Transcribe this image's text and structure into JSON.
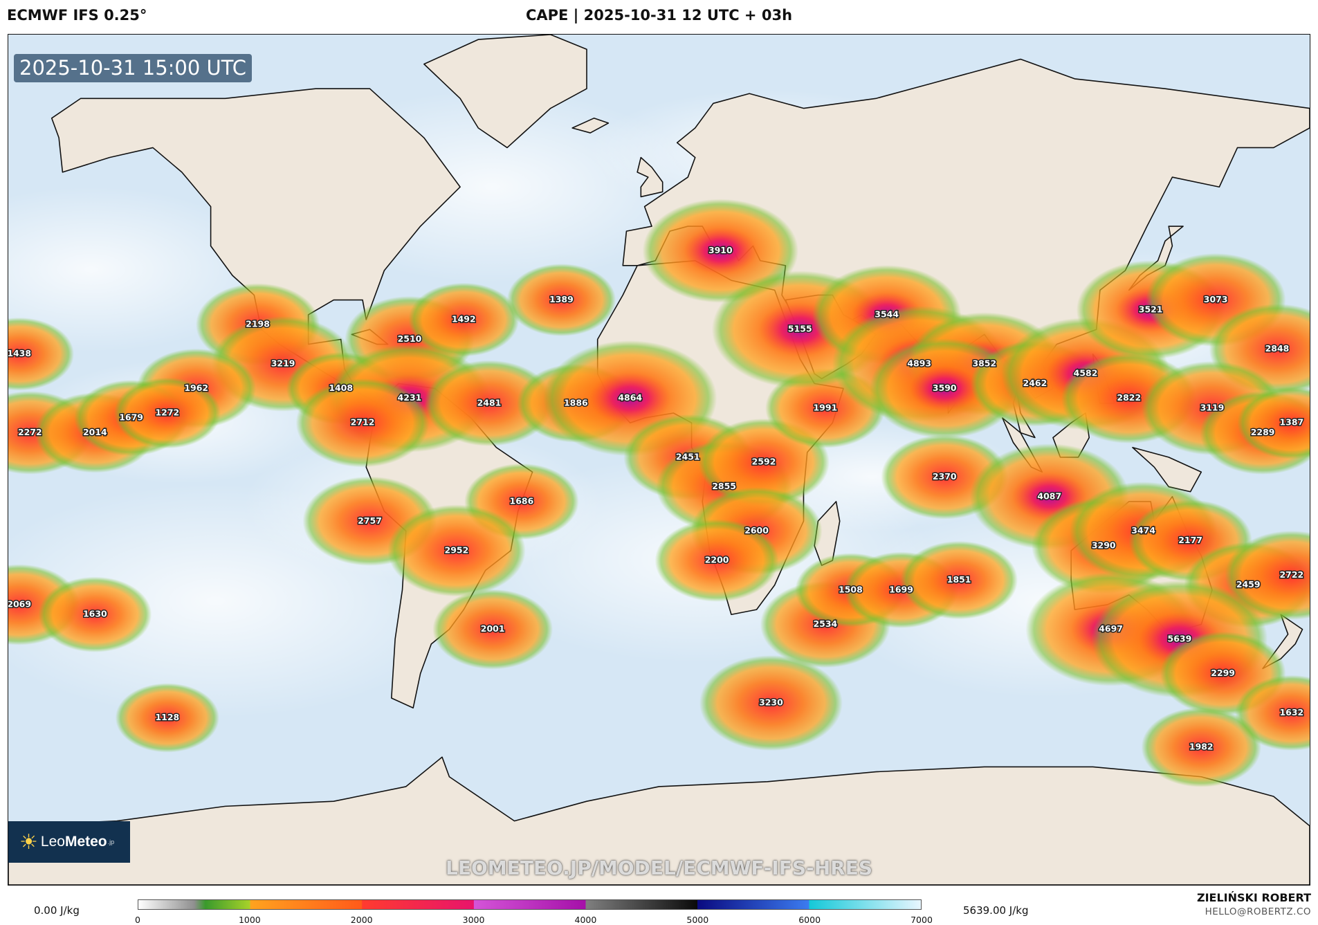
{
  "header": {
    "model": "ECMWF IFS 0.25°",
    "title": "CAPE | 2025-10-31 12 UTC + 03h"
  },
  "map": {
    "valid_time": "2025-10-31 15:00 UTC",
    "watermark": "LEOMETEO.JP/MODEL/ECMWF-IFS-HRES",
    "logo": {
      "brand_prefix": "Leo",
      "brand_main": "Meteo",
      "brand_suffix": ".jp",
      "icon": "sun-icon"
    },
    "colors": {
      "ocean": "#d6e7f5",
      "land": "#efe7dc",
      "border": "#111111"
    },
    "cape_values": [
      {
        "label": "2198",
        "lon": -111,
        "lat": 24
      },
      {
        "label": "3219",
        "lon": -104,
        "lat": 16
      },
      {
        "label": "1962",
        "lon": -128,
        "lat": 11
      },
      {
        "label": "1408",
        "lon": -88,
        "lat": 11
      },
      {
        "label": "2510",
        "lon": -69,
        "lat": 21
      },
      {
        "label": "1492",
        "lon": -54,
        "lat": 25
      },
      {
        "label": "1389",
        "lon": -27,
        "lat": 29
      },
      {
        "label": "4231",
        "lon": -69,
        "lat": 9
      },
      {
        "label": "2712",
        "lon": -82,
        "lat": 4
      },
      {
        "label": "2481",
        "lon": -47,
        "lat": 8
      },
      {
        "label": "1886",
        "lon": -23,
        "lat": 8
      },
      {
        "label": "4864",
        "lon": -8,
        "lat": 9
      },
      {
        "label": "2451",
        "lon": 8,
        "lat": -3
      },
      {
        "label": "2855",
        "lon": 18,
        "lat": -9
      },
      {
        "label": "2592",
        "lon": 29,
        "lat": -4
      },
      {
        "label": "1991",
        "lon": 46,
        "lat": 7
      },
      {
        "label": "1686",
        "lon": -38,
        "lat": -12
      },
      {
        "label": "2757",
        "lon": -80,
        "lat": -16
      },
      {
        "label": "2952",
        "lon": -56,
        "lat": -22
      },
      {
        "label": "2001",
        "lon": -46,
        "lat": -38
      },
      {
        "label": "2600",
        "lon": 27,
        "lat": -18
      },
      {
        "label": "2200",
        "lon": 16,
        "lat": -24
      },
      {
        "label": "2534",
        "lon": 46,
        "lat": -37
      },
      {
        "label": "3230",
        "lon": 31,
        "lat": -53
      },
      {
        "label": "3910",
        "lon": 17,
        "lat": 39
      },
      {
        "label": "5155",
        "lon": 39,
        "lat": 23
      },
      {
        "label": "3544",
        "lon": 63,
        "lat": 26
      },
      {
        "label": "4893",
        "lon": 72,
        "lat": 16
      },
      {
        "label": "3852",
        "lon": 90,
        "lat": 16
      },
      {
        "label": "3590",
        "lon": 79,
        "lat": 11
      },
      {
        "label": "2462",
        "lon": 104,
        "lat": 12
      },
      {
        "label": "4582",
        "lon": 118,
        "lat": 14
      },
      {
        "label": "3521",
        "lon": 136,
        "lat": 27
      },
      {
        "label": "3073",
        "lon": 154,
        "lat": 29
      },
      {
        "label": "2848",
        "lon": 171,
        "lat": 19
      },
      {
        "label": "2822",
        "lon": 130,
        "lat": 9
      },
      {
        "label": "3119",
        "lon": 153,
        "lat": 7
      },
      {
        "label": "2289",
        "lon": 167,
        "lat": 2
      },
      {
        "label": "1387",
        "lon": 175,
        "lat": 4
      },
      {
        "label": "2370",
        "lon": 79,
        "lat": -7
      },
      {
        "label": "4087",
        "lon": 108,
        "lat": -11
      },
      {
        "label": "3290",
        "lon": 123,
        "lat": -21
      },
      {
        "label": "3474",
        "lon": 134,
        "lat": -18
      },
      {
        "label": "2177",
        "lon": 147,
        "lat": -20
      },
      {
        "label": "1508",
        "lon": 53,
        "lat": -30
      },
      {
        "label": "1699",
        "lon": 67,
        "lat": -30
      },
      {
        "label": "1851",
        "lon": 83,
        "lat": -28
      },
      {
        "label": "2459",
        "lon": 163,
        "lat": -29
      },
      {
        "label": "2722",
        "lon": 175,
        "lat": -27
      },
      {
        "label": "4697",
        "lon": 125,
        "lat": -38
      },
      {
        "label": "5639",
        "lon": 144,
        "lat": -40
      },
      {
        "label": "2299",
        "lon": 156,
        "lat": -47
      },
      {
        "label": "1632",
        "lon": 175,
        "lat": -55
      },
      {
        "label": "1982",
        "lon": 150,
        "lat": -62
      },
      {
        "label": "1438",
        "lon": -177,
        "lat": 18
      },
      {
        "label": "2272",
        "lon": -174,
        "lat": 2
      },
      {
        "label": "2014",
        "lon": -156,
        "lat": 2
      },
      {
        "label": "1679",
        "lon": -146,
        "lat": 5
      },
      {
        "label": "1272",
        "lon": -136,
        "lat": 6
      },
      {
        "label": "2069",
        "lon": -177,
        "lat": -33
      },
      {
        "label": "1630",
        "lon": -156,
        "lat": -35
      },
      {
        "label": "1128",
        "lon": -136,
        "lat": -56
      }
    ]
  },
  "colorbar": {
    "min_label": "0.00 J/kg",
    "max_label": "5639.00 J/kg",
    "unit": "J/kg",
    "range": [
      0,
      7000
    ],
    "ticks": [
      "0",
      "1000",
      "2000",
      "3000",
      "4000",
      "5000",
      "6000",
      "7000"
    ],
    "stops": [
      {
        "v": 0,
        "c": "#ffffff"
      },
      {
        "v": 500,
        "c": "#8f8f8f"
      },
      {
        "v": 600,
        "c": "#3a9a2c"
      },
      {
        "v": 1000,
        "c": "#a8d22a"
      },
      {
        "v": 1001,
        "c": "#ffa31f"
      },
      {
        "v": 2000,
        "c": "#ff5a1a"
      },
      {
        "v": 2001,
        "c": "#ff3b2f"
      },
      {
        "v": 3000,
        "c": "#e8146b"
      },
      {
        "v": 3001,
        "c": "#d455d8"
      },
      {
        "v": 4000,
        "c": "#a510a8"
      },
      {
        "v": 4001,
        "c": "#808080"
      },
      {
        "v": 5000,
        "c": "#0a0a0a"
      },
      {
        "v": 5001,
        "c": "#0a0a80"
      },
      {
        "v": 6000,
        "c": "#3c7cf0"
      },
      {
        "v": 6001,
        "c": "#14c8d8"
      },
      {
        "v": 7000,
        "c": "#e8f6ff"
      }
    ]
  },
  "credits": {
    "name": "ZIELIŃSKI ROBERT",
    "email": "HELLO@ROBERTZ.CO"
  }
}
